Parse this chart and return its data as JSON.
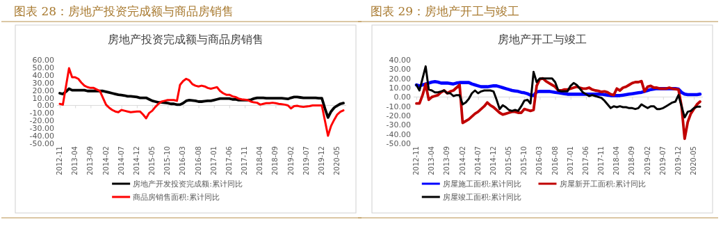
{
  "chart_data": [
    {
      "type": "line",
      "title": "图表 28：房地产投资完成额与商品房销售",
      "subtitle": "房地产投资完成额与商品房销售",
      "categories": [
        "2012-11",
        null,
        null,
        null,
        null,
        "2013-04",
        null,
        null,
        null,
        null,
        "2013-09",
        null,
        null,
        null,
        null,
        "2014-02",
        null,
        null,
        null,
        null,
        "2014-07",
        null,
        null,
        null,
        null,
        "2014-12",
        null,
        null,
        null,
        null,
        "2015-05",
        null,
        null,
        null,
        null,
        "2015-10",
        null,
        null,
        null,
        null,
        "2016-03",
        null,
        null,
        null,
        null,
        "2016-08",
        null,
        null,
        null,
        null,
        "2017-01",
        null,
        null,
        null,
        null,
        "2017-06",
        null,
        null,
        null,
        null,
        "2017-11",
        null,
        null,
        null,
        null,
        "2018-04",
        null,
        null,
        null,
        null,
        "2018-09",
        null,
        null,
        null,
        null,
        "2019-02",
        null,
        null,
        null,
        null,
        "2019-07",
        null,
        null,
        null,
        null,
        "2019-12",
        null,
        null,
        null,
        null,
        "2020-05",
        null,
        null
      ],
      "series": [
        {
          "name": "房地产开发投资完成额:累计同比",
          "color": "#000000",
          "values": [
            16,
            15,
            18,
            22,
            20,
            20,
            20,
            20,
            20,
            19,
            19,
            19,
            19,
            19,
            19,
            18,
            17,
            16,
            15,
            14,
            13.5,
            13,
            12,
            12,
            11.5,
            11,
            10,
            10,
            10,
            8,
            6,
            5,
            4,
            4,
            3.5,
            3,
            2,
            2,
            1,
            1,
            3,
            6,
            7,
            6.5,
            6,
            5,
            5,
            5.5,
            6,
            6,
            7,
            8,
            9,
            9,
            9,
            9,
            8,
            8,
            7,
            7,
            7,
            7,
            7.5,
            9,
            10,
            10,
            10,
            9.5,
            9.5,
            9.5,
            9.5,
            9.5,
            9.5,
            9,
            8.5,
            10,
            11,
            11,
            10.5,
            10,
            10,
            10,
            10,
            10,
            9.5,
            9.5,
            -4,
            -16,
            -8,
            -3,
            -0.3,
            2,
            3
          ]
        },
        {
          "name": "商品房销售面积:累计同比",
          "color": "#ff0000",
          "values": [
            2,
            1,
            25,
            49,
            37,
            37,
            35,
            30,
            26,
            24,
            23,
            23,
            21,
            19,
            10,
            1,
            -3,
            -6,
            -8,
            -9,
            -6,
            -7,
            -8,
            -9,
            -8.5,
            -8,
            -8,
            -12,
            -17,
            -10,
            -7,
            -2,
            2,
            5,
            6,
            7,
            7,
            7,
            6,
            27,
            32,
            35,
            33,
            28,
            26,
            25,
            26,
            25,
            23,
            22,
            23,
            24,
            19,
            16,
            14,
            14,
            12,
            11,
            9,
            8,
            7.5,
            7,
            5,
            4,
            3.5,
            1,
            2,
            3,
            3,
            3.5,
            3,
            2,
            1.5,
            1,
            0,
            -4,
            -1,
            -0.5,
            -1.5,
            -2,
            -1.5,
            -1,
            0,
            0,
            0,
            0,
            -20,
            -40,
            -27,
            -19,
            -12,
            -8.5,
            -6.6
          ]
        }
      ],
      "ylim": [
        -50,
        60
      ],
      "yticks": [
        {
          "value": -50,
          "label": "-50.00"
        },
        {
          "value": -40,
          "label": "-40.00"
        },
        {
          "value": -30,
          "label": "-30.00"
        },
        {
          "value": -20,
          "label": "-20.00"
        },
        {
          "value": -10,
          "label": "-10.00"
        },
        {
          "value": 0,
          "label": "0.00"
        },
        {
          "value": 10,
          "label": "10.00"
        },
        {
          "value": 20,
          "label": "20.00"
        },
        {
          "value": 30,
          "label": "30.00"
        },
        {
          "value": 40,
          "label": "40.00"
        },
        {
          "value": 50,
          "label": "50.00"
        },
        {
          "value": 60,
          "label": "60.00"
        }
      ],
      "legend": "bottom"
    },
    {
      "type": "line",
      "title": "图表 29：房地产开工与竣工",
      "subtitle": "房地产开工与竣工",
      "categories": [
        "2012-11",
        null,
        null,
        null,
        null,
        "2013-04",
        null,
        null,
        null,
        null,
        "2013-09",
        null,
        null,
        null,
        null,
        "2014-02",
        null,
        null,
        null,
        null,
        "2014-07",
        null,
        null,
        null,
        null,
        "2014-12",
        null,
        null,
        null,
        null,
        "2015-05",
        null,
        null,
        null,
        null,
        "2015-10",
        null,
        null,
        null,
        null,
        "2016-03",
        null,
        null,
        null,
        null,
        "2016-08",
        null,
        null,
        null,
        null,
        "2017-01",
        null,
        null,
        null,
        null,
        "2017-06",
        null,
        null,
        null,
        null,
        "2017-11",
        null,
        null,
        null,
        null,
        "2018-04",
        null,
        null,
        null,
        null,
        "2018-09",
        null,
        null,
        null,
        null,
        "2019-02",
        null,
        null,
        null,
        null,
        "2019-07",
        null,
        null,
        null,
        null,
        "2019-12",
        null,
        null,
        null,
        null,
        "2020-05",
        null,
        null
      ],
      "series": [
        {
          "name": "房屋施工面积:累计同比",
          "color": "#0000ff",
          "values": [
            13,
            12,
            13,
            14,
            15,
            16,
            16.5,
            16,
            15,
            15,
            15,
            14.5,
            14,
            15,
            15.5,
            15.5,
            15.5,
            15.5,
            14,
            13,
            12,
            11,
            11,
            11,
            11.5,
            12,
            12,
            11,
            10,
            9,
            8,
            7,
            6.5,
            6,
            5,
            4.5,
            3.5,
            2,
            1.5,
            5.5,
            6,
            6,
            6,
            6,
            5.5,
            5,
            4.5,
            4,
            3.5,
            3,
            3,
            3,
            3,
            3,
            3,
            3,
            3,
            3,
            3,
            3,
            3,
            2.5,
            2,
            1.5,
            1.5,
            1.5,
            1.5,
            2,
            2.5,
            3,
            3.5,
            4,
            4.5,
            5,
            6,
            7,
            8,
            8.5,
            9,
            9,
            9,
            9,
            9,
            9,
            9,
            8.5,
            5,
            3,
            2.5,
            2.5,
            2.5,
            2.5,
            3
          ]
        },
        {
          "name": "房屋新开工面积:累计同比",
          "color": "#c00000",
          "values": [
            -7,
            -7,
            2,
            14,
            -3,
            0,
            1,
            2,
            5,
            7,
            4,
            6,
            7,
            10,
            13,
            -28,
            -26,
            -24,
            -21,
            -18,
            -16,
            -13,
            -10,
            -6,
            -9,
            -11,
            -14,
            -17,
            -19,
            -18,
            -17,
            -16,
            -16,
            -17,
            -17,
            -13,
            -14,
            -15,
            -14,
            12,
            19,
            20,
            17,
            15,
            13,
            11,
            7,
            7,
            8,
            8,
            9,
            10,
            11,
            10,
            9,
            9,
            10,
            8,
            7,
            6.5,
            5.5,
            6,
            5,
            3,
            2,
            9,
            7,
            10,
            11,
            13,
            15,
            16,
            16,
            17,
            6,
            11,
            12,
            10,
            10,
            9,
            9,
            9,
            10,
            9,
            8.5,
            8,
            -10,
            -45,
            -27,
            -18,
            -13,
            -8,
            -5
          ]
        },
        {
          "name": "房屋竣工面积:累计同比",
          "color": "#000000",
          "values": [
            13,
            7,
            20,
            33,
            8,
            7,
            5,
            5,
            6,
            7,
            4,
            4,
            1,
            2,
            2,
            -8,
            -6,
            -2,
            4,
            7,
            4,
            6,
            7,
            7,
            7,
            6,
            -3,
            -13,
            -9,
            -11,
            -14,
            -15,
            -14,
            -15,
            -10,
            -4,
            -3,
            -7,
            27,
            16,
            20,
            20,
            20,
            20,
            20,
            16,
            7,
            6,
            6,
            6,
            12,
            15,
            13,
            9,
            5,
            3,
            1,
            2,
            1,
            0,
            -1,
            -4,
            -8,
            -12,
            -10,
            -11,
            -10,
            -11,
            -11,
            -12,
            -12,
            -13,
            -12,
            -8,
            -10,
            -12,
            -10,
            -10,
            -13,
            -13,
            -12,
            -10,
            -8,
            -6,
            -5,
            2,
            -10,
            -22,
            -16,
            -15,
            -12,
            -10.5,
            -10.5
          ]
        }
      ],
      "ylim": [
        -50,
        40
      ],
      "yticks": [
        {
          "value": -50,
          "label": "-50.00"
        },
        {
          "value": -40,
          "label": "-40.00"
        },
        {
          "value": -30,
          "label": "-30.00"
        },
        {
          "value": -20,
          "label": "-20.00"
        },
        {
          "value": -10,
          "label": "-10.00"
        },
        {
          "value": 0,
          "label": "0.00"
        },
        {
          "value": 10,
          "label": "10.00"
        },
        {
          "value": 20,
          "label": "20.00"
        },
        {
          "value": 30,
          "label": "30.00"
        },
        {
          "value": 40,
          "label": "40.00"
        }
      ],
      "legend": "bottom"
    }
  ]
}
